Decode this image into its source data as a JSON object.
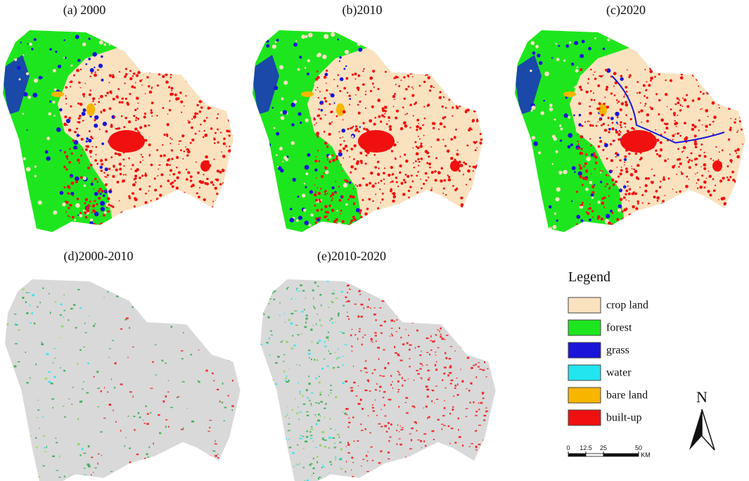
{
  "panels": [
    {
      "title": "(a)  2000",
      "kind": "landuse"
    },
    {
      "title": "(b)2010",
      "kind": "landuse"
    },
    {
      "title": "(c)2020",
      "kind": "landuse"
    },
    {
      "title": "(d)2000-2010",
      "kind": "change"
    },
    {
      "title": "(e)2010-2020",
      "kind": "change"
    }
  ],
  "legend": {
    "title": "Legend",
    "items": [
      {
        "label": "crop land",
        "color": "#fbe2bf"
      },
      {
        "label": "forest",
        "color": "#1ee61e"
      },
      {
        "label": "grass",
        "color": "#1a14d8"
      },
      {
        "label": "water",
        "color": "#22e5f0"
      },
      {
        "label": "bare land",
        "color": "#f7b500"
      },
      {
        "label": "built-up",
        "color": "#f01010"
      }
    ]
  },
  "scale_bar": {
    "ticks": [
      0,
      12.5,
      25,
      50
    ],
    "unit": "KM"
  },
  "north_arrow": "N"
}
